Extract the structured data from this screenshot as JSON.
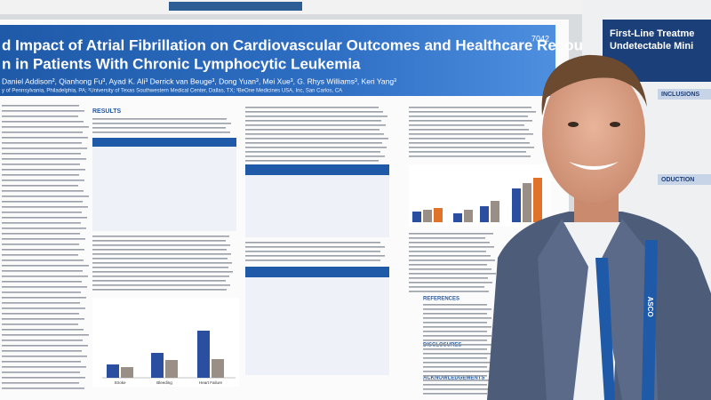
{
  "poster": {
    "number": "7042",
    "title_lines": [
      "d Impact of Atrial Fibrillation on Cardiovascular Outcomes and Healthcare Resource",
      "n in Patients With Chronic Lymphocytic Leukemia"
    ],
    "authors": "Daniel Addison², Qianhong Fu³, Ayad K. Ali³ Derrick van Beuge³, Dong Yuan³, Mei Xue³, G. Rhys Williams³, Keri Yang³",
    "affiliations": "y of Pennsylvania, Philadelphia, PA; ²University of Texas Southwestern Medical Center, Dallas, TX; ³BeOne Medicines USA, Inc, San Carlos, CA",
    "headings": [
      "RESULTS",
      "REFERENCES",
      "DISCLOSURES",
      "ACKNOWLEDGEMENTS"
    ],
    "chart_labels": [
      "Stroke",
      "Bleeding",
      "Heart Failure"
    ]
  },
  "right_poster": {
    "title_lines": [
      "First-Line Treatme",
      "Undetectable Mini"
    ],
    "headings": [
      "INCLUSIONS",
      "ODUCTION"
    ]
  },
  "lanyard": "ASCO"
}
